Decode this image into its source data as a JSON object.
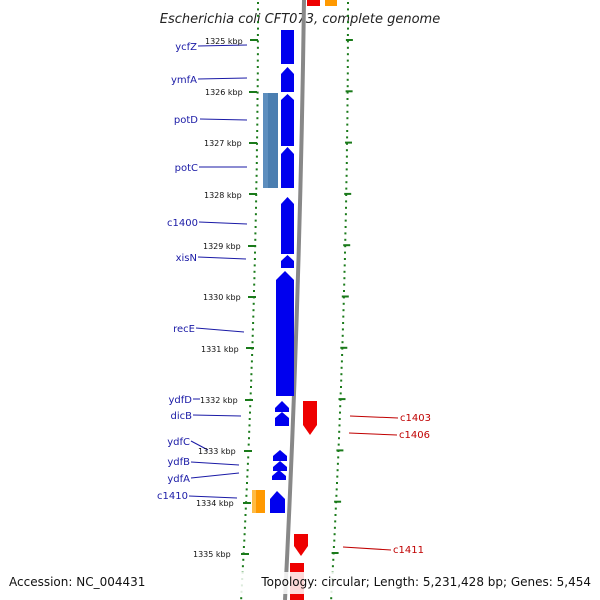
{
  "title": "Escherichia coli CFT073, complete genome",
  "accession": "Accession: NC_004431",
  "topology": "Topology: circular; Length: 5,231,428 bp; Genes: 5,454",
  "colors": {
    "forward_cds": "#0000ee",
    "reverse_cds": "#ee0000",
    "orange_feature": "#ff9900",
    "steelblue_feature": "#4a7eb0",
    "backbone": "#888888",
    "tick": "#1a7a1a",
    "left_label": "#1a1aa6",
    "right_label": "#c00000"
  },
  "ticks": [
    "1325 kbp",
    "1326 kbp",
    "1327 kbp",
    "1328 kbp",
    "1329 kbp",
    "1330 kbp",
    "1331 kbp",
    "1332 kbp",
    "1333 kbp",
    "1334 kbp",
    "1335 kbp"
  ],
  "left_genes": [
    "ycfZ",
    "ymfA",
    "potD",
    "potC",
    "c1400",
    "xisN",
    "recE",
    "ydfD",
    "dicB",
    "ydfC",
    "ydfB",
    "ydfA",
    "c1410"
  ],
  "right_genes": [
    "c1403",
    "c1406",
    "c1411"
  ]
}
